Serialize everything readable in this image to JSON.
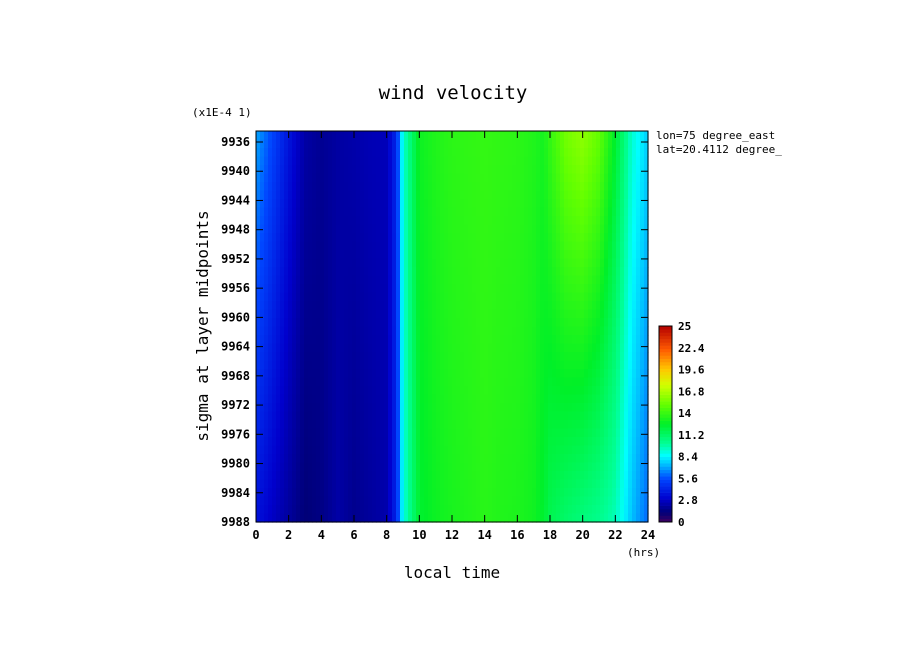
{
  "chart_data": {
    "type": "heatmap",
    "title": "wind velocity",
    "xlabel": "local time",
    "x_unit": "(hrs)",
    "ylabel": "sigma at layer midpoints",
    "y_scale_note": "(x1E-4 1)",
    "annotations": [
      "lon=75 degree_east",
      "lat=20.4112 degree_"
    ],
    "xlim": [
      0,
      24
    ],
    "x_ticks": [
      "0",
      "2",
      "4",
      "6",
      "8",
      "10",
      "12",
      "14",
      "16",
      "18",
      "20",
      "22",
      "24"
    ],
    "y_ticks": [
      "9936",
      "9940",
      "9944",
      "9948",
      "9952",
      "9956",
      "9960",
      "9964",
      "9968",
      "9972",
      "9976",
      "9980",
      "9984",
      "9988"
    ],
    "colorbar": {
      "min": 0,
      "max": 25,
      "labels": [
        "25",
        "22.4",
        "19.6",
        "16.8",
        "14",
        "11.2",
        "8.4",
        "5.6",
        "2.8",
        "0"
      ]
    },
    "x": [
      0,
      1,
      2,
      3,
      4,
      5,
      6,
      7,
      8,
      8.6,
      9,
      10,
      11,
      12,
      13,
      14,
      15,
      16,
      17,
      17.6,
      18,
      19,
      20,
      21,
      22,
      23,
      24
    ],
    "profile_top": [
      7.0,
      5.4,
      3.7,
      2.2,
      1.8,
      2.1,
      2.3,
      2.5,
      2.6,
      4.5,
      9.0,
      12.8,
      13.3,
      13.6,
      13.7,
      13.8,
      13.7,
      13.6,
      13.3,
      13.0,
      13.8,
      15.4,
      16.0,
      15.0,
      12.4,
      9.2,
      7.6
    ],
    "profile_bottom": [
      3.6,
      2.8,
      2.0,
      1.2,
      1.5,
      2.2,
      1.7,
      2.0,
      2.3,
      4.4,
      8.8,
      12.3,
      12.8,
      13.1,
      13.3,
      13.5,
      13.3,
      13.2,
      12.9,
      12.3,
      11.6,
      11.0,
      10.6,
      10.2,
      9.5,
      7.4,
      6.0
    ]
  }
}
